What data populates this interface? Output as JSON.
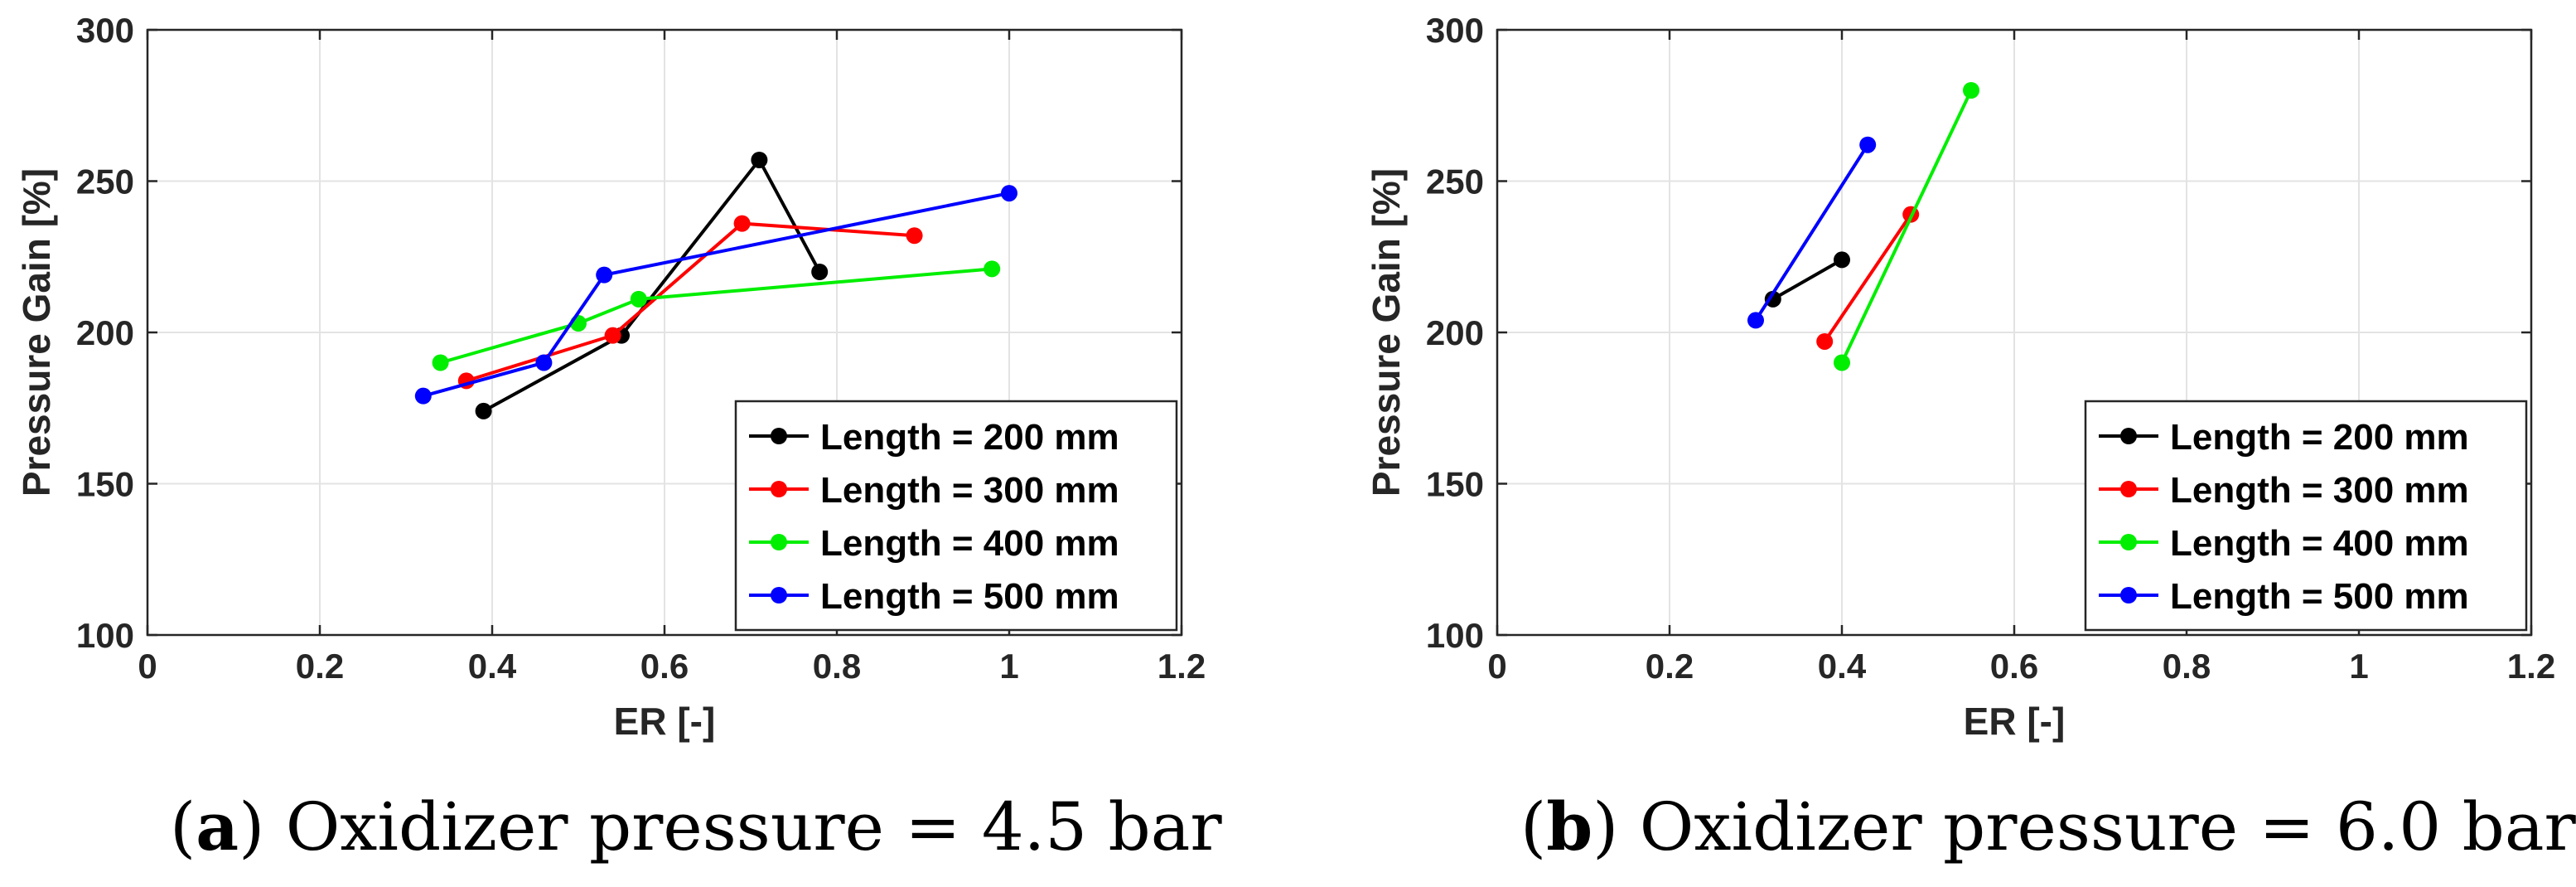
{
  "chart_data": [
    {
      "type": "line",
      "panel": "a",
      "xlabel": "ER [-]",
      "ylabel": "Pressure Gain [%]",
      "xlim": [
        0,
        1.2
      ],
      "ylim": [
        100,
        300
      ],
      "xticks": [
        0,
        0.2,
        0.4,
        0.6,
        0.8,
        1,
        1.2
      ],
      "xtick_labels": [
        "0",
        "0.2",
        "0.4",
        "0.6",
        "0.8",
        "1",
        "1.2"
      ],
      "yticks": [
        100,
        150,
        200,
        250,
        300
      ],
      "ytick_labels": [
        "100",
        "150",
        "200",
        "250",
        "300"
      ],
      "grid": true,
      "legend_position": "bottom-right",
      "series": [
        {
          "name": "Length = 200 mm",
          "color": "#000000",
          "x": [
            0.39,
            0.55,
            0.71,
            0.78
          ],
          "y": [
            174,
            199,
            257,
            220
          ]
        },
        {
          "name": "Length = 300 mm",
          "color": "#ff0000",
          "x": [
            0.37,
            0.54,
            0.69,
            0.89
          ],
          "y": [
            184,
            199,
            236,
            232
          ]
        },
        {
          "name": "Length = 400 mm",
          "color": "#00ee00",
          "x": [
            0.34,
            0.5,
            0.57,
            0.98
          ],
          "y": [
            190,
            203,
            211,
            221
          ]
        },
        {
          "name": "Length = 500 mm",
          "color": "#0000ff",
          "x": [
            0.32,
            0.46,
            0.53,
            1.0
          ],
          "y": [
            179,
            190,
            219,
            246
          ]
        }
      ]
    },
    {
      "type": "line",
      "panel": "b",
      "xlabel": "ER [-]",
      "ylabel": "Pressure Gain [%]",
      "xlim": [
        0,
        1.2
      ],
      "ylim": [
        100,
        300
      ],
      "xticks": [
        0,
        0.2,
        0.4,
        0.6,
        0.8,
        1,
        1.2
      ],
      "xtick_labels": [
        "0",
        "0.2",
        "0.4",
        "0.6",
        "0.8",
        "1",
        "1.2"
      ],
      "yticks": [
        100,
        150,
        200,
        250,
        300
      ],
      "ytick_labels": [
        "100",
        "150",
        "200",
        "250",
        "300"
      ],
      "grid": true,
      "legend_position": "bottom-right",
      "series": [
        {
          "name": "Length = 200 mm",
          "color": "#000000",
          "x": [
            0.32,
            0.4
          ],
          "y": [
            211,
            224
          ]
        },
        {
          "name": "Length = 300 mm",
          "color": "#ff0000",
          "x": [
            0.38,
            0.48
          ],
          "y": [
            197,
            239
          ]
        },
        {
          "name": "Length = 400 mm",
          "color": "#00ee00",
          "x": [
            0.4,
            0.55
          ],
          "y": [
            190,
            280
          ]
        },
        {
          "name": "Length = 500 mm",
          "color": "#0000ff",
          "x": [
            0.3,
            0.43
          ],
          "y": [
            204,
            262
          ]
        }
      ]
    }
  ],
  "captions": [
    {
      "letter": "a",
      "text": ") Oxidizer pressure = 4.5 bar",
      "open": "("
    },
    {
      "letter": "b",
      "text": ") Oxidizer pressure = 6.0 bar",
      "open": "("
    }
  ]
}
